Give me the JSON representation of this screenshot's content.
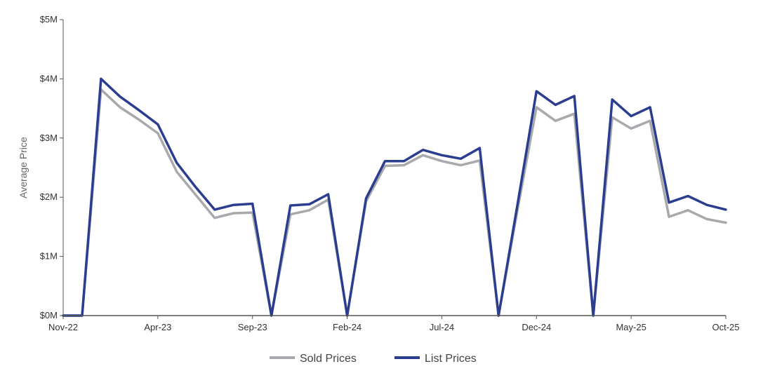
{
  "chart_data": {
    "type": "line",
    "ylabel": "Average Price",
    "xlabel": "",
    "ylim": [
      0,
      5000000
    ],
    "y_ticks": [
      {
        "value": 0,
        "label": "$0M"
      },
      {
        "value": 1000000,
        "label": "$1M"
      },
      {
        "value": 2000000,
        "label": "$2M"
      },
      {
        "value": 3000000,
        "label": "$3M"
      },
      {
        "value": 4000000,
        "label": "$4M"
      },
      {
        "value": 5000000,
        "label": "$5M"
      }
    ],
    "x": [
      "Nov-22",
      "Dec-22",
      "Jan-23",
      "Feb-23",
      "Mar-23",
      "Apr-23",
      "May-23",
      "Jun-23",
      "Jul-23",
      "Aug-23",
      "Sep-23",
      "Oct-23",
      "Nov-23",
      "Dec-23",
      "Jan-24",
      "Feb-24",
      "Mar-24",
      "Apr-24",
      "May-24",
      "Jun-24",
      "Jul-24",
      "Aug-24",
      "Sep-24",
      "Oct-24",
      "Nov-24",
      "Dec-24",
      "Jan-25",
      "Feb-25",
      "Mar-25",
      "Apr-25",
      "May-25",
      "Jun-25",
      "Jul-25",
      "Aug-25",
      "Sep-25",
      "Oct-25"
    ],
    "x_tick_labels": [
      {
        "index": 0,
        "label": "Nov-22"
      },
      {
        "index": 5,
        "label": "Apr-23"
      },
      {
        "index": 10,
        "label": "Sep-23"
      },
      {
        "index": 15,
        "label": "Feb-24"
      },
      {
        "index": 20,
        "label": "Jul-24"
      },
      {
        "index": 25,
        "label": "Dec-24"
      },
      {
        "index": 30,
        "label": "May-25"
      },
      {
        "index": 35,
        "label": "Oct-25"
      }
    ],
    "grid": false,
    "legend_position": "bottom-center",
    "series": [
      {
        "name": "Sold Prices",
        "color": "#a7a9ad",
        "values": [
          0,
          0,
          3820000,
          3520000,
          3310000,
          3080000,
          2430000,
          2040000,
          1650000,
          1730000,
          1740000,
          0,
          1710000,
          1780000,
          1960000,
          0,
          1930000,
          2530000,
          2540000,
          2710000,
          2610000,
          2540000,
          2620000,
          0,
          1790000,
          3520000,
          3290000,
          3410000,
          0,
          3350000,
          3160000,
          3290000,
          1670000,
          1780000,
          1630000,
          1570000
        ]
      },
      {
        "name": "List Prices",
        "color": "#2b3d8f",
        "values": [
          0,
          0,
          4000000,
          3700000,
          3470000,
          3230000,
          2580000,
          2170000,
          1790000,
          1870000,
          1890000,
          0,
          1860000,
          1880000,
          2050000,
          0,
          1980000,
          2610000,
          2610000,
          2800000,
          2710000,
          2650000,
          2830000,
          0,
          1880000,
          3790000,
          3560000,
          3710000,
          0,
          3650000,
          3370000,
          3520000,
          1910000,
          2020000,
          1870000,
          1790000
        ]
      }
    ]
  }
}
